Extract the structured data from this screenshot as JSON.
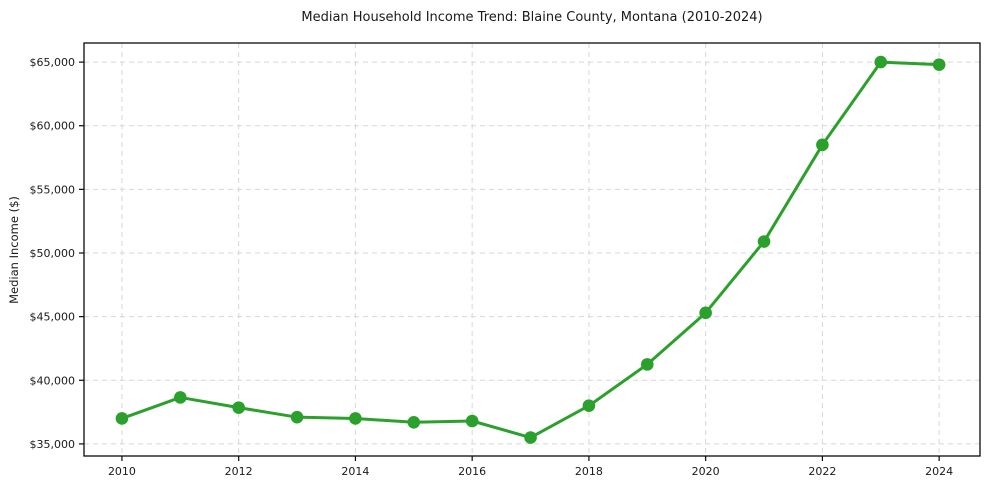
{
  "chart_data": {
    "type": "line",
    "title": "Median Household Income Trend: Blaine County, Montana (2010-2024)",
    "xlabel": "",
    "ylabel": "Median Income ($)",
    "x": [
      2010,
      2011,
      2012,
      2013,
      2014,
      2015,
      2016,
      2017,
      2018,
      2019,
      2020,
      2021,
      2022,
      2023,
      2024
    ],
    "series": [
      {
        "name": "Median Household Income",
        "values": [
          37000,
          38650,
          37850,
          37100,
          37000,
          36700,
          36800,
          35500,
          38000,
          41250,
          45300,
          50900,
          58500,
          65000,
          64800
        ]
      }
    ],
    "x_tick_years": [
      2010,
      2012,
      2014,
      2016,
      2018,
      2020,
      2022,
      2024
    ],
    "x_tick_labels": [
      "2010",
      "2012",
      "2014",
      "2016",
      "2018",
      "2020",
      "2022",
      "2024"
    ],
    "y_ticks": [
      35000,
      40000,
      45000,
      50000,
      55000,
      60000,
      65000
    ],
    "y_tick_labels": [
      "$35,000",
      "$40,000",
      "$45,000",
      "$50,000",
      "$55,000",
      "$60,000",
      "$65,000"
    ],
    "xlim": [
      2009.35,
      2024.7
    ],
    "ylim": [
      34050,
      66500
    ],
    "grid": true,
    "grid_style": "dashed",
    "legend_position": "none",
    "line_color": "#2ca02c",
    "grid_color": "#d7d7d7",
    "spine_color": "#0a0a0a",
    "tick_label_color": "#1a1a1a",
    "marker": "circle"
  }
}
